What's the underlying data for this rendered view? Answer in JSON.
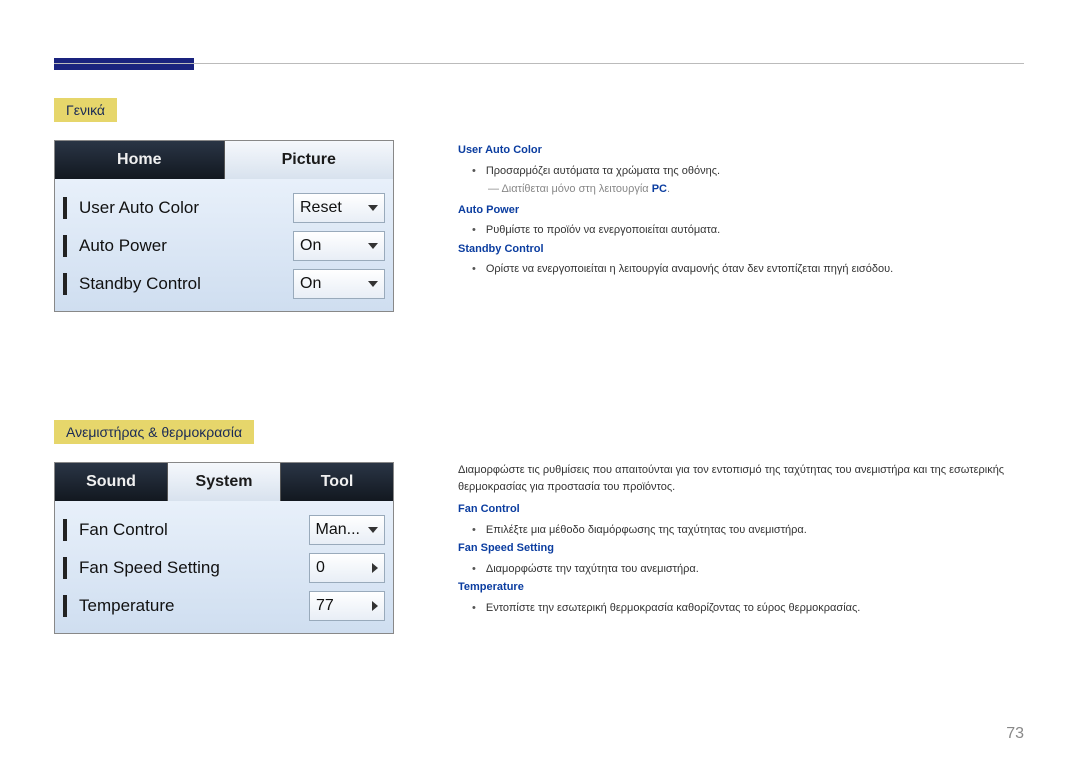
{
  "section1": {
    "title": "Γενικά",
    "tabs": [
      "Home",
      "Picture"
    ],
    "activeTab": 1,
    "rows": [
      {
        "label": "User Auto Color",
        "value": "Reset",
        "arrow": "down"
      },
      {
        "label": "Auto Power",
        "value": "On",
        "arrow": "down"
      },
      {
        "label": "Standby Control",
        "value": "On",
        "arrow": "down"
      }
    ],
    "desc": {
      "h1": "User Auto Color",
      "b1": "Προσαρμόζει αυτόματα τα χρώματα της οθόνης.",
      "note_pre": "― Διατίθεται μόνο στη λειτουργία ",
      "note_pc": "PC",
      "h2": "Auto Power",
      "b2": "Ρυθμίστε το προϊόν να ενεργοποιείται αυτόματα.",
      "h3": "Standby Control",
      "b3": "Ορίστε να ενεργοποιείται η λειτουργία αναμονής όταν δεν εντοπίζεται πηγή εισόδου."
    }
  },
  "section2": {
    "title": "Ανεμιστήρας & θερμοκρασία",
    "tabs": [
      "Sound",
      "System",
      "Tool"
    ],
    "activeTab": 1,
    "rows": [
      {
        "label": "Fan Control",
        "value": "Man...",
        "arrow": "down"
      },
      {
        "label": "Fan Speed Setting",
        "value": "0",
        "arrow": "right"
      },
      {
        "label": "Temperature",
        "value": "77",
        "arrow": "right"
      }
    ],
    "intro": "Διαμορφώστε τις ρυθμίσεις που απαιτούνται για τον εντοπισμό της ταχύτητας του ανεμιστήρα και της εσωτερικής θερμοκρασίας για προστασία του προϊόντος.",
    "desc": {
      "h1": "Fan Control",
      "b1": "Επιλέξτε μια μέθοδο διαμόρφωσης της ταχύτητας του ανεμιστήρα.",
      "h2": "Fan Speed Setting",
      "b2": "Διαμορφώστε την ταχύτητα του ανεμιστήρα.",
      "h3": "Temperature",
      "b3": "Εντοπίστε την εσωτερική θερμοκρασία καθορίζοντας το εύρος θερμοκρασίας."
    }
  },
  "pageNumber": "73"
}
